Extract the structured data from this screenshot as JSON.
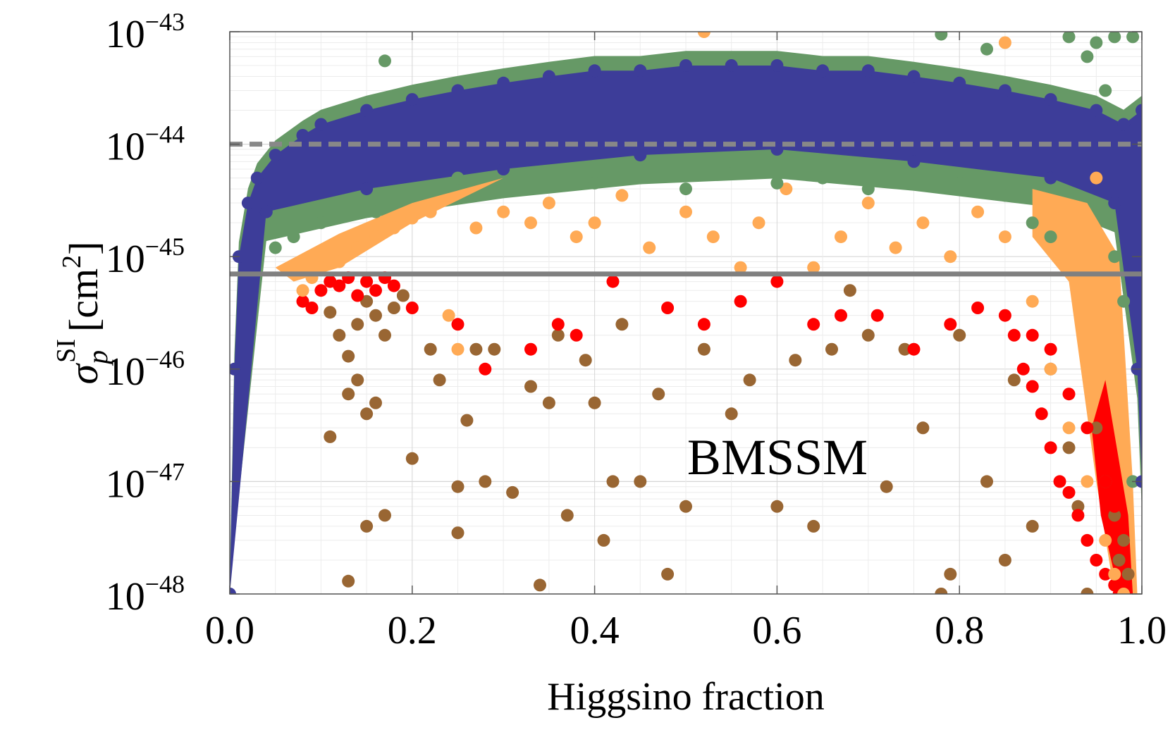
{
  "chart_data": {
    "type": "scatter",
    "title": "",
    "xlabel": "Higgsino fraction",
    "ylabel": {
      "symbol": "σ",
      "subscript": "p",
      "superscript": "SI",
      "unit": "[cm",
      "unit_power": "2",
      "unit_close": "]"
    },
    "annotation": "BMSSM",
    "x_range": [
      0.0,
      1.0
    ],
    "y_range": [
      1e-48,
      1e-43
    ],
    "y_scale": "log",
    "grid": true,
    "x_ticks": [
      "0.0",
      "0.2",
      "0.4",
      "0.6",
      "0.8",
      "1.0"
    ],
    "x_tick_values": [
      0.0,
      0.2,
      0.4,
      0.6,
      0.8,
      1.0
    ],
    "y_ticks": [
      {
        "base": "10",
        "exp": "−48",
        "value": 1e-48
      },
      {
        "base": "10",
        "exp": "−47",
        "value": 1e-47
      },
      {
        "base": "10",
        "exp": "−46",
        "value": 1e-46
      },
      {
        "base": "10",
        "exp": "−45",
        "value": 1e-45
      },
      {
        "base": "10",
        "exp": "−44",
        "value": 1e-44
      },
      {
        "base": "10",
        "exp": "−43",
        "value": 1e-43
      }
    ],
    "reference_lines": [
      {
        "y": 1e-44,
        "style": "dashed",
        "color": "#888888"
      },
      {
        "y": 7e-46,
        "style": "solid",
        "color": "#808080"
      }
    ],
    "series": [
      {
        "color": "#996633",
        "points": [
          [
            0.11,
            3.2e-46
          ],
          [
            0.12,
            2e-46
          ],
          [
            0.13,
            1.3e-46
          ],
          [
            0.14,
            2.5e-46
          ],
          [
            0.15,
            4e-46
          ],
          [
            0.16,
            3e-46
          ],
          [
            0.17,
            2e-46
          ],
          [
            0.18,
            3.5e-46
          ],
          [
            0.19,
            4.5e-46
          ],
          [
            0.13,
            6e-47
          ],
          [
            0.14,
            8e-47
          ],
          [
            0.15,
            4e-47
          ],
          [
            0.16,
            5e-47
          ],
          [
            0.11,
            2.5e-47
          ],
          [
            0.15,
            4e-48
          ],
          [
            0.17,
            5e-48
          ],
          [
            0.13,
            1.3e-48
          ],
          [
            0.2,
            1.6e-47
          ],
          [
            0.22,
            1.5e-46
          ],
          [
            0.23,
            8e-47
          ],
          [
            0.25,
            9e-48
          ],
          [
            0.25,
            3.5e-48
          ],
          [
            0.26,
            3.5e-47
          ],
          [
            0.27,
            1.5e-46
          ],
          [
            0.28,
            1e-47
          ],
          [
            0.29,
            1.5e-46
          ],
          [
            0.31,
            8e-48
          ],
          [
            0.33,
            7e-47
          ],
          [
            0.34,
            1.2e-48
          ],
          [
            0.35,
            5e-47
          ],
          [
            0.36,
            2e-46
          ],
          [
            0.37,
            5e-48
          ],
          [
            0.39,
            1.2e-46
          ],
          [
            0.4,
            5e-47
          ],
          [
            0.41,
            3e-48
          ],
          [
            0.42,
            1e-47
          ],
          [
            0.43,
            2.5e-46
          ],
          [
            0.45,
            1e-47
          ],
          [
            0.47,
            6e-47
          ],
          [
            0.48,
            1.5e-48
          ],
          [
            0.5,
            6e-48
          ],
          [
            0.52,
            1.5e-46
          ],
          [
            0.55,
            4e-47
          ],
          [
            0.57,
            8e-47
          ],
          [
            0.6,
            6e-48
          ],
          [
            0.62,
            1.2e-46
          ],
          [
            0.64,
            4e-48
          ],
          [
            0.66,
            1.5e-46
          ],
          [
            0.68,
            5e-46
          ],
          [
            0.7,
            2e-46
          ],
          [
            0.72,
            9e-48
          ],
          [
            0.74,
            1.5e-46
          ],
          [
            0.76,
            3e-47
          ],
          [
            0.78,
            1e-48
          ],
          [
            0.79,
            1.5e-48
          ],
          [
            0.8,
            2e-46
          ],
          [
            0.83,
            1e-47
          ],
          [
            0.85,
            2e-48
          ],
          [
            0.86,
            8e-47
          ],
          [
            0.88,
            4e-48
          ],
          [
            0.9,
            1e-46
          ],
          [
            0.92,
            2e-47
          ],
          [
            0.93,
            6e-48
          ],
          [
            0.94,
            1e-48
          ],
          [
            0.95,
            3e-47
          ],
          [
            0.96,
            1e-47
          ],
          [
            0.97,
            5e-48
          ],
          [
            0.975,
            2e-48
          ],
          [
            0.98,
            3e-48
          ],
          [
            0.985,
            1.5e-48
          ]
        ]
      },
      {
        "color": "#ff0000",
        "points": [
          [
            0.08,
            4e-46
          ],
          [
            0.09,
            3.5e-46
          ],
          [
            0.1,
            5e-46
          ],
          [
            0.11,
            6e-46
          ],
          [
            0.12,
            5.5e-46
          ],
          [
            0.13,
            6.5e-46
          ],
          [
            0.14,
            4.5e-46
          ],
          [
            0.15,
            6e-46
          ],
          [
            0.16,
            5e-46
          ],
          [
            0.17,
            6.5e-46
          ],
          [
            0.18,
            5.5e-46
          ],
          [
            0.2,
            3.5e-46
          ],
          [
            0.25,
            2.5e-46
          ],
          [
            0.28,
            1e-46
          ],
          [
            0.33,
            1.5e-46
          ],
          [
            0.36,
            2.5e-46
          ],
          [
            0.38,
            2e-46
          ],
          [
            0.42,
            6e-46
          ],
          [
            0.48,
            3.5e-46
          ],
          [
            0.52,
            2.5e-46
          ],
          [
            0.56,
            4e-46
          ],
          [
            0.6,
            6e-46
          ],
          [
            0.64,
            2.5e-46
          ],
          [
            0.67,
            3e-46
          ],
          [
            0.71,
            3e-46
          ],
          [
            0.75,
            1.5e-46
          ],
          [
            0.79,
            2.5e-46
          ],
          [
            0.82,
            3.5e-46
          ],
          [
            0.85,
            3e-46
          ],
          [
            0.86,
            2e-46
          ],
          [
            0.87,
            1e-46
          ],
          [
            0.88,
            7e-47
          ],
          [
            0.89,
            4e-47
          ],
          [
            0.9,
            2e-47
          ],
          [
            0.91,
            1e-47
          ],
          [
            0.92,
            8e-48
          ],
          [
            0.93,
            5e-48
          ],
          [
            0.94,
            3e-48
          ],
          [
            0.95,
            2e-48
          ],
          [
            0.96,
            1.5e-48
          ],
          [
            0.97,
            1.2e-48
          ],
          [
            0.975,
            1e-48
          ],
          [
            0.88,
            2e-46
          ],
          [
            0.9,
            1.5e-46
          ],
          [
            0.92,
            6e-47
          ],
          [
            0.94,
            3e-47
          ],
          [
            0.96,
            1e-47
          ],
          [
            0.97,
            6e-48
          ]
        ]
      },
      {
        "color": "#ffaa55",
        "points": [
          [
            0.08,
            5e-46
          ],
          [
            0.09,
            6.5e-46
          ],
          [
            0.1,
            8e-46
          ],
          [
            0.12,
            9e-46
          ],
          [
            0.14,
            1.2e-45
          ],
          [
            0.16,
            1.5e-45
          ],
          [
            0.18,
            1.8e-45
          ],
          [
            0.2,
            2.2e-45
          ],
          [
            0.22,
            2.5e-45
          ],
          [
            0.24,
            3e-46
          ],
          [
            0.25,
            1.5e-46
          ],
          [
            0.27,
            1.8e-45
          ],
          [
            0.3,
            2.5e-45
          ],
          [
            0.33,
            2e-45
          ],
          [
            0.35,
            3e-45
          ],
          [
            0.38,
            1.5e-45
          ],
          [
            0.4,
            2e-45
          ],
          [
            0.43,
            3.5e-45
          ],
          [
            0.46,
            1.2e-45
          ],
          [
            0.5,
            2.5e-45
          ],
          [
            0.53,
            1.5e-45
          ],
          [
            0.56,
            8e-46
          ],
          [
            0.58,
            2e-45
          ],
          [
            0.61,
            4e-45
          ],
          [
            0.64,
            8e-46
          ],
          [
            0.67,
            1.5e-45
          ],
          [
            0.7,
            3e-45
          ],
          [
            0.73,
            1.2e-45
          ],
          [
            0.76,
            2e-45
          ],
          [
            0.79,
            1e-45
          ],
          [
            0.82,
            2.5e-45
          ],
          [
            0.85,
            1.5e-45
          ],
          [
            0.88,
            4e-46
          ],
          [
            0.9,
            1e-46
          ],
          [
            0.92,
            3e-47
          ],
          [
            0.94,
            1e-47
          ],
          [
            0.96,
            3e-48
          ],
          [
            0.97,
            1.5e-48
          ],
          [
            0.98,
            1e-48
          ],
          [
            0.52,
            1e-43
          ],
          [
            0.85,
            8e-44
          ],
          [
            0.95,
            5e-45
          ],
          [
            0.96,
            1e-45
          ]
        ]
      },
      {
        "color": "#669966",
        "points": [
          [
            0.05,
            1.2e-45
          ],
          [
            0.07,
            1.5e-45
          ],
          [
            0.1,
            2e-45
          ],
          [
            0.13,
            3e-45
          ],
          [
            0.16,
            2.5e-45
          ],
          [
            0.17,
            5.5e-44
          ],
          [
            0.2,
            4e-45
          ],
          [
            0.25,
            5e-45
          ],
          [
            0.3,
            4e-45
          ],
          [
            0.35,
            5.5e-45
          ],
          [
            0.4,
            4.5e-45
          ],
          [
            0.45,
            5e-45
          ],
          [
            0.5,
            4e-45
          ],
          [
            0.55,
            5.5e-45
          ],
          [
            0.6,
            4.5e-45
          ],
          [
            0.65,
            5e-45
          ],
          [
            0.7,
            4e-45
          ],
          [
            0.75,
            5.5e-45
          ],
          [
            0.78,
            9.5e-44
          ],
          [
            0.8,
            4.5e-45
          ],
          [
            0.83,
            7e-44
          ],
          [
            0.85,
            3.5e-45
          ],
          [
            0.88,
            2e-45
          ],
          [
            0.9,
            1.5e-45
          ],
          [
            0.92,
            9e-44
          ],
          [
            0.94,
            6e-44
          ],
          [
            0.96,
            3e-44
          ],
          [
            0.97,
            1e-45
          ],
          [
            0.98,
            4e-46
          ],
          [
            0.99,
            1e-47
          ],
          [
            0.95,
            8e-44
          ],
          [
            0.97,
            9e-44
          ],
          [
            0.99,
            9e-44
          ]
        ]
      },
      {
        "color": "#3d3d99",
        "points": [
          [
            0.0,
            1e-48
          ],
          [
            0.005,
            1e-46
          ],
          [
            0.01,
            1e-45
          ],
          [
            0.02,
            3e-45
          ],
          [
            0.03,
            5e-45
          ],
          [
            0.05,
            8e-45
          ],
          [
            0.08,
            1.2e-44
          ],
          [
            0.1,
            1.5e-44
          ],
          [
            0.15,
            2e-44
          ],
          [
            0.2,
            2.5e-44
          ],
          [
            0.25,
            3e-44
          ],
          [
            0.3,
            3.5e-44
          ],
          [
            0.35,
            4e-44
          ],
          [
            0.4,
            4.5e-44
          ],
          [
            0.45,
            4.5e-44
          ],
          [
            0.5,
            5e-44
          ],
          [
            0.55,
            5e-44
          ],
          [
            0.6,
            5e-44
          ],
          [
            0.65,
            4.5e-44
          ],
          [
            0.7,
            4.5e-44
          ],
          [
            0.75,
            4e-44
          ],
          [
            0.8,
            3.5e-44
          ],
          [
            0.85,
            3e-44
          ],
          [
            0.9,
            2.5e-44
          ],
          [
            0.95,
            2e-44
          ],
          [
            0.98,
            1.5e-44
          ],
          [
            1.0,
            2e-44
          ],
          [
            0.04,
            2.5e-45
          ],
          [
            0.15,
            4e-45
          ],
          [
            0.3,
            6e-45
          ],
          [
            0.45,
            8e-45
          ],
          [
            0.6,
            9e-45
          ],
          [
            0.75,
            7e-45
          ],
          [
            0.9,
            5e-45
          ],
          [
            0.97,
            3e-45
          ],
          [
            0.995,
            1e-46
          ],
          [
            1.0,
            1e-47
          ]
        ]
      }
    ]
  }
}
